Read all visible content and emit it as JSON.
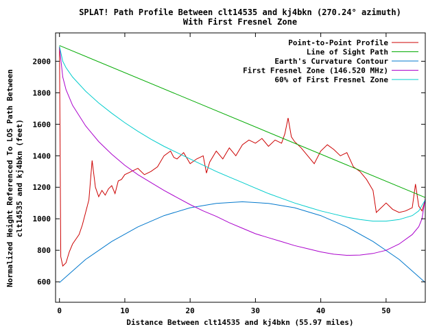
{
  "chart_data": {
    "type": "line",
    "title": "SPLAT! Path Profile Between clt14535 and kj4bkn (270.24° azimuth)",
    "subtitle": "With First Fresnel Zone",
    "xlabel": "Distance Between clt14535 and kj4bkn (55.97 miles)",
    "ylabel_line1": "Normalized Height Referenced To LOS Path Between",
    "ylabel_line2": "clt14535 and kj4bkn (feet)",
    "xlim": [
      -0.6,
      56
    ],
    "ylim": [
      470,
      2180
    ],
    "x_ticks": [
      0,
      10,
      20,
      30,
      40,
      50
    ],
    "y_ticks": [
      600,
      800,
      1000,
      1200,
      1400,
      1600,
      1800,
      2000
    ],
    "grid": false,
    "legend_position": "top-right",
    "series": [
      {
        "name": "Point-to-Point Profile",
        "color": "#cc0000",
        "x": [
          0,
          0.2,
          0.5,
          1,
          1.5,
          2,
          2.5,
          3,
          3.5,
          4,
          4.5,
          5,
          5.5,
          6,
          6.5,
          7,
          7.5,
          8,
          8.5,
          9,
          9.5,
          10,
          11,
          12,
          13,
          14,
          15,
          16,
          17,
          17.5,
          18,
          19,
          20,
          21,
          22,
          22.5,
          23,
          24,
          25,
          26,
          27,
          28,
          29,
          30,
          31,
          32,
          33,
          34,
          34.5,
          35,
          35.5,
          36,
          37,
          38,
          39,
          40,
          41,
          42,
          43,
          44,
          45,
          46,
          47,
          48,
          48.5,
          49,
          50,
          51,
          52,
          53,
          54,
          54.5,
          55,
          55.5,
          56
        ],
        "y": [
          2095,
          760,
          700,
          720,
          790,
          840,
          870,
          900,
          960,
          1040,
          1120,
          1370,
          1200,
          1140,
          1180,
          1150,
          1190,
          1210,
          1160,
          1240,
          1250,
          1280,
          1300,
          1320,
          1280,
          1300,
          1330,
          1400,
          1430,
          1390,
          1380,
          1420,
          1350,
          1380,
          1400,
          1290,
          1360,
          1430,
          1380,
          1450,
          1400,
          1470,
          1500,
          1480,
          1510,
          1460,
          1500,
          1480,
          1540,
          1640,
          1520,
          1490,
          1450,
          1400,
          1350,
          1430,
          1470,
          1440,
          1400,
          1420,
          1330,
          1300,
          1250,
          1180,
          1040,
          1060,
          1100,
          1060,
          1040,
          1050,
          1070,
          1220,
          1080,
          1050,
          1120
        ]
      },
      {
        "name": "Line of Sight Path",
        "color": "#00aa00",
        "x": [
          0,
          56
        ],
        "y": [
          2100,
          1135
        ]
      },
      {
        "name": "Earth's Curvature Contour",
        "color": "#0077cc",
        "x": [
          0,
          4,
          8,
          12,
          16,
          20,
          24,
          28,
          32,
          36,
          40,
          44,
          48,
          52,
          56
        ],
        "y": [
          595,
          742,
          856,
          948,
          1020,
          1070,
          1098,
          1108,
          1098,
          1070,
          1020,
          948,
          856,
          742,
          595
        ]
      },
      {
        "name": "First Fresnel Zone (146.520 MHz)",
        "color": "#aa00cc",
        "x": [
          0,
          0.5,
          1,
          2,
          4,
          6,
          8,
          10,
          12,
          14,
          16,
          18,
          20,
          22,
          24,
          26,
          28,
          30,
          32,
          34,
          36,
          38,
          40,
          42,
          44,
          46,
          48,
          50,
          52,
          54,
          55,
          55.5,
          56
        ],
        "y": [
          2090,
          1900,
          1820,
          1720,
          1590,
          1490,
          1410,
          1340,
          1280,
          1230,
          1180,
          1135,
          1090,
          1050,
          1015,
          975,
          940,
          905,
          880,
          855,
          830,
          810,
          790,
          775,
          768,
          770,
          780,
          800,
          840,
          900,
          950,
          1000,
          1130
        ]
      },
      {
        "name": "60% of First Fresnel Zone",
        "color": "#00cccc",
        "x": [
          0,
          0.5,
          1,
          2,
          4,
          6,
          8,
          10,
          12,
          14,
          16,
          18,
          20,
          22,
          24,
          26,
          28,
          30,
          32,
          34,
          36,
          38,
          40,
          42,
          44,
          46,
          48,
          50,
          52,
          54,
          55,
          56
        ],
        "y": [
          2095,
          2000,
          1960,
          1900,
          1810,
          1735,
          1670,
          1610,
          1555,
          1505,
          1460,
          1420,
          1380,
          1340,
          1300,
          1265,
          1230,
          1195,
          1160,
          1130,
          1100,
          1075,
          1050,
          1030,
          1010,
          995,
          985,
          985,
          995,
          1020,
          1050,
          1120
        ]
      }
    ]
  }
}
